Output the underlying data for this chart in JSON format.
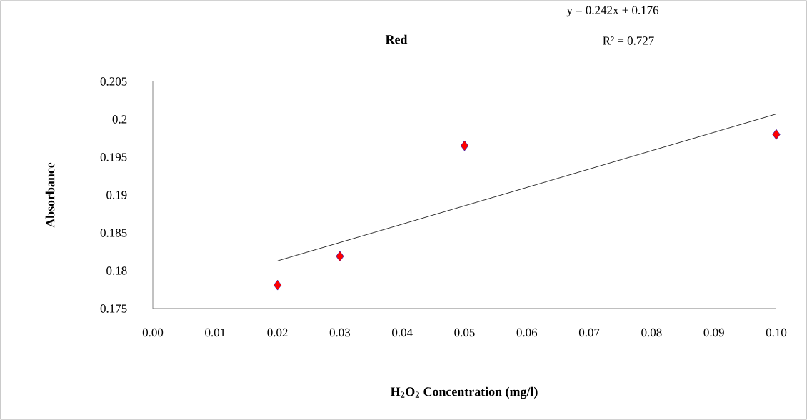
{
  "chart_data": {
    "type": "scatter",
    "title": "Red",
    "xlabel": "H$_{2}$O$_{2}$ Concentration (mg/l)",
    "ylabel": "Absorbance",
    "annotations": [
      "y = 0.242x + 0.176",
      "R² = 0.727"
    ],
    "x": [
      0.02,
      0.03,
      0.05,
      0.1
    ],
    "series": [
      {
        "color": "#ff0000",
        "marker": "diamond",
        "values": [
          0.1781,
          0.1819,
          0.1965,
          0.198
        ]
      },
      {
        "type": "line",
        "color": "#000000",
        "marker": "none",
        "line_style": "solid",
        "x": [
          0.02,
          0.1
        ],
        "values": [
          0.1813,
          0.2007
        ]
      }
    ],
    "xlim": [
      0,
      0.1
    ],
    "ylim": [
      0.175,
      0.205
    ],
    "xticks": [
      {
        "value": 0,
        "label": "0.00"
      },
      0.01,
      0.02,
      0.03,
      0.04,
      0.05,
      0.06,
      0.07,
      0.08,
      0.09,
      {
        "value": 0.1,
        "label": "0.10"
      }
    ],
    "yticks": [
      0.175,
      0.18,
      0.185,
      0.19,
      0.195,
      {
        "value": 0.2,
        "label": "0.2"
      },
      0.205
    ],
    "grid": false
  }
}
